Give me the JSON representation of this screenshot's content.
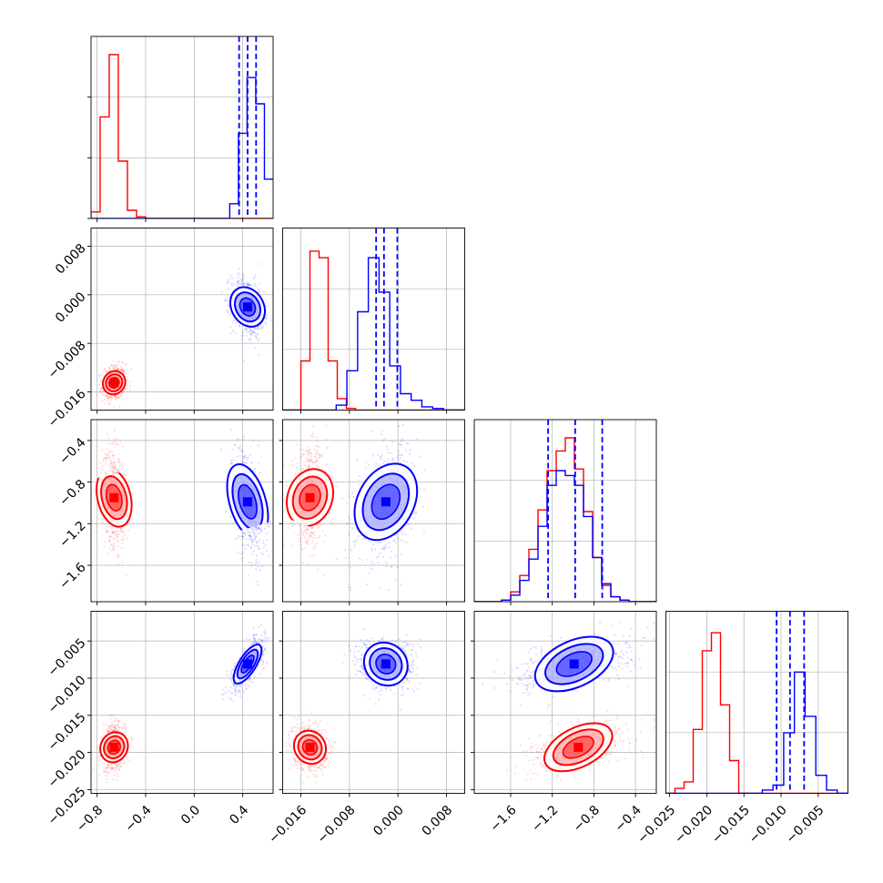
{
  "colors": {
    "red": "#ff0000",
    "blue": "#0000ff",
    "grid": "#b0b0b0"
  },
  "chart_data": {
    "type": "corner",
    "grid": true,
    "params": [
      {
        "range": [
          -0.85,
          0.65
        ],
        "ticks": [
          -0.8,
          -0.4,
          0.0,
          0.4
        ],
        "tick_labels": [
          "−0.8",
          "−0.4",
          "0.0",
          "0.4"
        ]
      },
      {
        "range": [
          -0.019,
          0.011
        ],
        "ticks": [
          -0.016,
          -0.008,
          0.0,
          0.008
        ],
        "tick_labels": [
          "−0.016",
          "−0.008",
          "0.000",
          "0.008"
        ]
      },
      {
        "range": [
          -1.95,
          -0.2
        ],
        "ticks": [
          -1.6,
          -1.2,
          -0.8,
          -0.4
        ],
        "tick_labels": [
          "−1.6",
          "−1.2",
          "−0.8",
          "−0.4"
        ]
      },
      {
        "range": [
          -0.0255,
          -0.001
        ],
        "ticks": [
          -0.025,
          -0.02,
          -0.015,
          -0.01,
          -0.005
        ],
        "tick_labels": [
          "−0.025",
          "−0.020",
          "−0.015",
          "−0.010",
          "−0.005"
        ]
      }
    ],
    "diag_ymax": 1.0,
    "series": [
      {
        "name": "",
        "color": "#ff0000",
        "center": [
          -0.66,
          -0.0145,
          -0.95,
          -0.0193
        ],
        "sigma": [
          0.035,
          0.00105,
          0.17,
          0.0012
        ],
        "hist": [
          [
            0.04,
            0.62,
            1.0,
            0.35,
            0.05,
            0.01,
            0.0,
            0.0,
            0.0,
            0.0,
            0.0,
            0.0,
            0.0,
            0.0,
            0.0,
            0.0,
            0.0,
            0.0,
            0.0,
            0.0
          ],
          [
            0.0,
            0.0,
            0.3,
            0.97,
            0.93,
            0.3,
            0.07,
            0.01,
            0.0,
            0.0,
            0.0,
            0.0,
            0.0,
            0.0,
            0.0,
            0.0,
            0.0,
            0.0,
            0.0,
            0.0
          ],
          [
            0.0,
            0.0,
            0.0,
            0.01,
            0.06,
            0.16,
            0.32,
            0.56,
            0.8,
            0.92,
            1.0,
            0.81,
            0.55,
            0.27,
            0.1,
            0.03,
            0.01,
            0.0,
            0.0,
            0.0
          ],
          [
            0.0,
            0.03,
            0.07,
            0.39,
            0.87,
            0.98,
            0.54,
            0.2,
            0.0,
            0.0,
            0.0,
            0.0,
            0.0,
            0.0,
            0.0,
            0.0,
            0.0,
            0.0,
            0.0,
            0.0
          ]
        ]
      },
      {
        "name": "",
        "color": "#0000ff",
        "center": [
          0.44,
          -0.002,
          -0.99,
          -0.0081
        ],
        "sigma": [
          0.05,
          0.0018,
          0.2,
          0.0013
        ],
        "quantiles": [
          [
            0.37,
            0.44,
            0.51
          ],
          [
            -0.0036,
            -0.0023,
            -0.0001
          ],
          [
            -1.24,
            -0.98,
            -0.72
          ],
          [
            -0.0106,
            -0.0088,
            -0.0069
          ]
        ],
        "hist": [
          [
            0.0,
            0.0,
            0.0,
            0.0,
            0.0,
            0.0,
            0.0,
            0.0,
            0.0,
            0.0,
            0.0,
            0.0,
            0.0,
            0.0,
            0.0,
            0.0,
            0.09,
            0.52,
            0.86,
            0.7,
            0.24
          ],
          [
            0.0,
            0.0,
            0.0,
            0.0,
            0.0,
            0.03,
            0.24,
            0.6,
            0.93,
            0.72,
            0.27,
            0.1,
            0.06,
            0.02,
            0.01,
            0.0,
            0.0
          ],
          [
            0.0,
            0.0,
            0.0,
            0.01,
            0.04,
            0.13,
            0.26,
            0.46,
            0.71,
            0.8,
            0.77,
            0.71,
            0.52,
            0.27,
            0.11,
            0.03,
            0.01,
            0.0,
            0.0,
            0.0
          ],
          [
            0.0,
            0.0,
            0.0,
            0.0,
            0.0,
            0.0,
            0.0,
            0.0,
            0.0,
            0.02,
            0.05,
            0.37,
            0.74,
            0.47,
            0.11,
            0.02,
            0.0
          ]
        ]
      }
    ]
  }
}
